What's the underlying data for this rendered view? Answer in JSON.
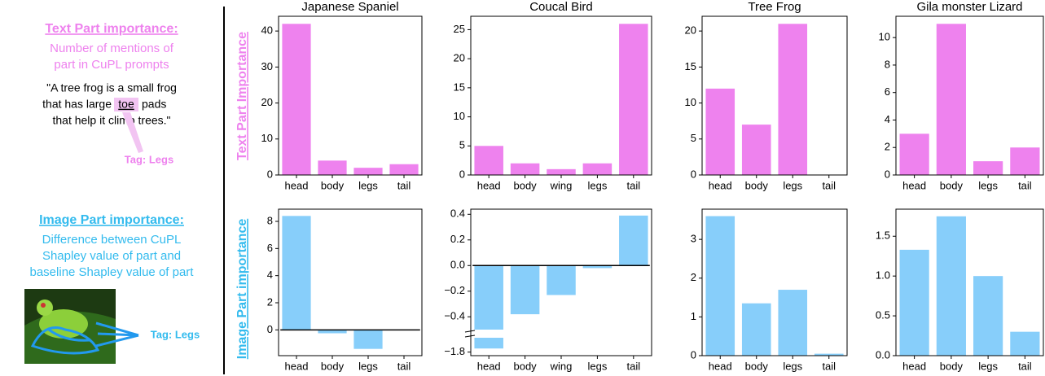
{
  "side": {
    "text_title": "Text Part importance:",
    "text_desc": [
      "Number of mentions of",
      "part in CuPL prompts"
    ],
    "quote": {
      "line1": "\"A tree frog is a small frog",
      "line2_before": "that has large",
      "highlight": "toe",
      "line2_after": "pads",
      "line3": "that help it climb trees.\""
    },
    "text_tag": "Tag: Legs",
    "image_title": "Image Part importance:",
    "image_desc": [
      "Difference between CuPL",
      "Shapley value of part and",
      "baseline Shapley value of part"
    ],
    "image_tag": "Tag: Legs"
  },
  "row_labels": [
    "Text Part Importance",
    "Image Part importance"
  ],
  "chart_data": [
    {
      "type": "bar",
      "title": "Japanese Spaniel",
      "categories": [
        "head",
        "body",
        "legs",
        "tail"
      ],
      "values": [
        42,
        4,
        2,
        3
      ],
      "color": "#ee82ee",
      "ylim": [
        0,
        44.1
      ],
      "yticks": [
        0,
        10,
        20,
        30,
        40
      ]
    },
    {
      "type": "bar",
      "title": "Coucal Bird",
      "categories": [
        "head",
        "body",
        "wing",
        "legs",
        "tail"
      ],
      "values": [
        5,
        2,
        1,
        2,
        26
      ],
      "color": "#ee82ee",
      "ylim": [
        0,
        27.3
      ],
      "yticks": [
        0,
        5,
        10,
        15,
        20,
        25
      ]
    },
    {
      "type": "bar",
      "title": "Tree Frog",
      "categories": [
        "head",
        "body",
        "legs",
        "tail"
      ],
      "values": [
        12,
        7,
        21,
        0
      ],
      "color": "#ee82ee",
      "ylim": [
        0,
        22.05
      ],
      "yticks": [
        0,
        5,
        10,
        15,
        20
      ]
    },
    {
      "type": "bar",
      "title": "Gila monster Lizard",
      "categories": [
        "head",
        "body",
        "legs",
        "tail"
      ],
      "values": [
        3,
        11,
        1,
        2
      ],
      "color": "#ee82ee",
      "ylim": [
        0,
        11.55
      ],
      "yticks": [
        0,
        2,
        4,
        6,
        8,
        10
      ]
    },
    {
      "type": "bar",
      "categories": [
        "head",
        "body",
        "legs",
        "tail"
      ],
      "values": [
        8.4,
        -0.25,
        -1.4,
        0
      ],
      "color": "#87cefa",
      "ylim": [
        -1.9,
        8.9
      ],
      "yticks": [
        0,
        2,
        4,
        6,
        8
      ],
      "zero_line": true
    },
    {
      "type": "bar",
      "categories": [
        "head",
        "body",
        "wing",
        "legs",
        "tail"
      ],
      "values": [
        -1.78,
        -0.38,
        -0.23,
        -0.02,
        0.39
      ],
      "color": "#87cefa",
      "ylim": [
        -1.82,
        0.44
      ],
      "ybreak": [
        -1.72,
        -0.5
      ],
      "yticks": [
        {
          "value": -1.8,
          "label": "−1.8"
        },
        {
          "value": -0.4,
          "label": "−0.4"
        },
        {
          "value": -0.2,
          "label": "−0.2"
        },
        {
          "value": 0,
          "label": "0.0"
        },
        0.2,
        0.4
      ],
      "zero_line": true
    },
    {
      "type": "bar",
      "categories": [
        "head",
        "body",
        "legs",
        "tail"
      ],
      "values": [
        3.6,
        1.35,
        1.7,
        0.05
      ],
      "color": "#87cefa",
      "ylim": [
        0,
        3.78
      ],
      "yticks": [
        0,
        1,
        2,
        3
      ]
    },
    {
      "type": "bar",
      "categories": [
        "head",
        "body",
        "legs",
        "tail"
      ],
      "values": [
        1.33,
        1.75,
        1.0,
        0.3
      ],
      "color": "#87cefa",
      "ylim": [
        0,
        1.84
      ],
      "yticks": [
        {
          "value": 0,
          "label": "0.0"
        },
        0.5,
        {
          "value": 1,
          "label": "1.0"
        },
        1.5
      ]
    }
  ]
}
